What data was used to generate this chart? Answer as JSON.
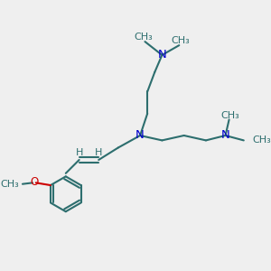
{
  "bg_color": "#efefef",
  "bond_color": "#2d6e6e",
  "nitrogen_color": "#0000cc",
  "oxygen_color": "#cc0000",
  "line_width": 1.5,
  "font_size": 8.5,
  "fig_size": [
    3.0,
    3.0
  ],
  "dpi": 100,
  "xlim": [
    0,
    10
  ],
  "ylim": [
    0,
    10
  ]
}
